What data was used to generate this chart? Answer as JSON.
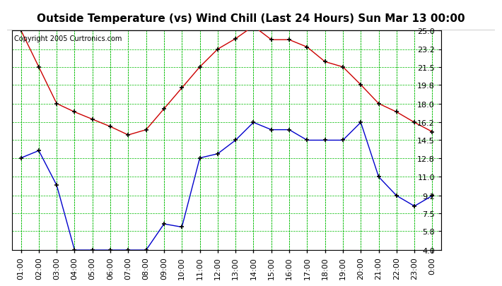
{
  "title": "Outside Temperature (vs) Wind Chill (Last 24 Hours) Sun Mar 13 00:00",
  "copyright": "Copyright 2005 Curtronics.com",
  "x_labels": [
    "01:00",
    "02:00",
    "03:00",
    "04:00",
    "05:00",
    "06:00",
    "07:00",
    "08:00",
    "09:00",
    "10:00",
    "11:00",
    "12:00",
    "13:00",
    "14:00",
    "15:00",
    "16:00",
    "17:00",
    "18:00",
    "19:00",
    "20:00",
    "21:00",
    "22:00",
    "23:00",
    "0:00"
  ],
  "x_values": [
    1,
    2,
    3,
    4,
    5,
    6,
    7,
    8,
    9,
    10,
    11,
    12,
    13,
    14,
    15,
    16,
    17,
    18,
    19,
    20,
    21,
    22,
    23,
    24
  ],
  "red_line": [
    25.0,
    21.5,
    18.0,
    17.2,
    16.5,
    15.8,
    15.0,
    15.5,
    17.5,
    19.5,
    21.5,
    23.2,
    24.2,
    25.4,
    24.1,
    24.1,
    23.4,
    22.0,
    21.5,
    19.8,
    18.0,
    17.2,
    16.2,
    15.3
  ],
  "blue_line": [
    12.8,
    13.5,
    10.2,
    4.0,
    4.0,
    4.0,
    4.0,
    4.0,
    6.5,
    6.2,
    12.8,
    13.2,
    14.5,
    16.2,
    15.5,
    15.5,
    14.5,
    14.5,
    14.5,
    16.2,
    11.0,
    9.2,
    8.2,
    9.2
  ],
  "yticks": [
    4.0,
    5.8,
    7.5,
    9.2,
    11.0,
    12.8,
    14.5,
    16.2,
    18.0,
    19.8,
    21.5,
    23.2,
    25.0
  ],
  "ymin": 4.0,
  "ymax": 25.0,
  "red_color": "#cc0000",
  "blue_color": "#0000cc",
  "grid_color": "#00bb00",
  "bg_color": "#ffffff",
  "plot_bg_color": "#ffffff",
  "title_fontsize": 11,
  "tick_fontsize": 8,
  "copyright_fontsize": 7
}
